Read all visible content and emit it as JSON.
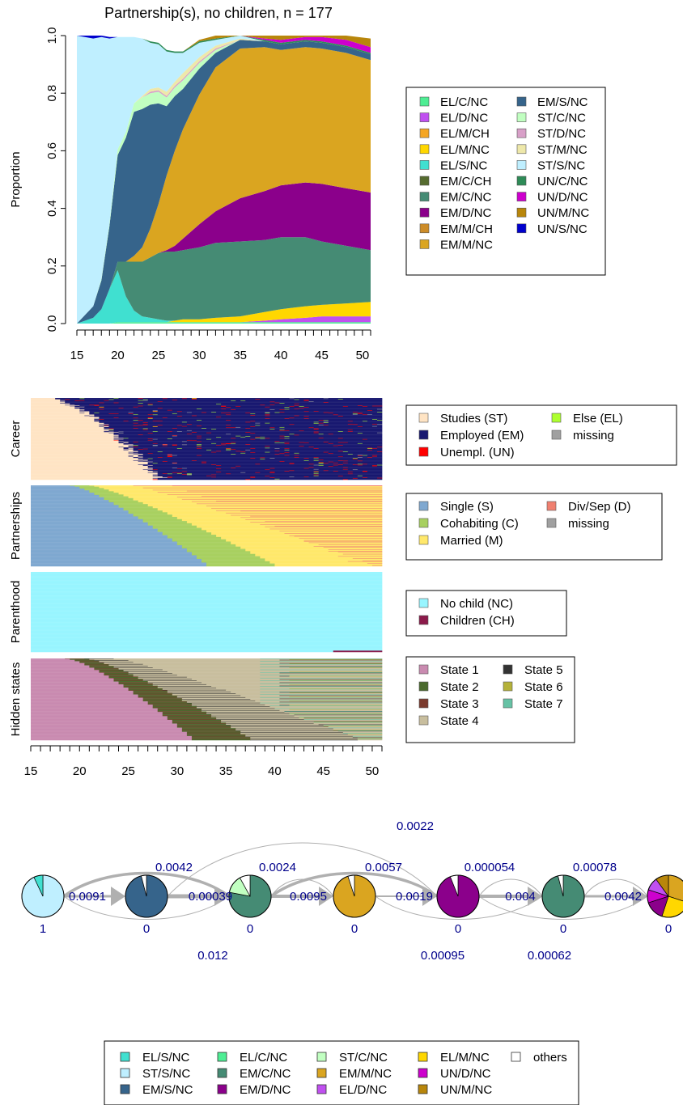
{
  "chart_data": [
    {
      "type": "area",
      "title": "Partnership(s), no children, n = 177",
      "xlabel": "",
      "ylabel": "Proportion",
      "xlim": [
        15,
        51
      ],
      "ylim": [
        0,
        1
      ],
      "x_ticks": [
        15,
        20,
        25,
        30,
        35,
        40,
        45,
        50
      ],
      "y_ticks": [
        "0.0",
        "0.2",
        "0.4",
        "0.6",
        "0.8",
        "1.0"
      ],
      "x": [
        15,
        17,
        18,
        19,
        20,
        21,
        22,
        23,
        24,
        25,
        26,
        27,
        28,
        30,
        32,
        35,
        38,
        40,
        43,
        45,
        48,
        51
      ],
      "series": [
        {
          "name": "EL/C/NC",
          "color": "#4EEE94",
          "values": [
            0,
            0,
            0,
            0,
            0.005,
            0.005,
            0.005,
            0.005,
            0.005,
            0.005,
            0.005,
            0.005,
            0.005,
            0.005,
            0.005,
            0.005,
            0.005,
            0.005,
            0.005,
            0.005,
            0.005,
            0.005
          ]
        },
        {
          "name": "EL/D/NC",
          "color": "#C050F0",
          "values": [
            0,
            0,
            0,
            0,
            0,
            0,
            0,
            0,
            0,
            0,
            0,
            0,
            0,
            0,
            0,
            0,
            0.005,
            0.01,
            0.015,
            0.02,
            0.02,
            0.02
          ]
        },
        {
          "name": "EL/M/CH",
          "color": "#F5A623",
          "values": [
            0,
            0,
            0,
            0,
            0,
            0,
            0,
            0,
            0,
            0,
            0,
            0,
            0,
            0,
            0,
            0,
            0,
            0,
            0,
            0,
            0,
            0
          ]
        },
        {
          "name": "EL/M/NC",
          "color": "#FFD700",
          "values": [
            0,
            0,
            0,
            0,
            0,
            0,
            0,
            0,
            0,
            0,
            0,
            0.005,
            0.01,
            0.01,
            0.015,
            0.02,
            0.03,
            0.035,
            0.04,
            0.04,
            0.045,
            0.05
          ]
        },
        {
          "name": "EL/S/NC",
          "color": "#40E0D0",
          "values": [
            0,
            0.02,
            0.05,
            0.12,
            0.18,
            0.09,
            0.04,
            0.02,
            0.015,
            0.01,
            0.005,
            0,
            0,
            0,
            0,
            0,
            0,
            0,
            0,
            0,
            0,
            0
          ]
        },
        {
          "name": "EM/C/CH",
          "color": "#556B2F",
          "values": [
            0,
            0,
            0,
            0,
            0,
            0,
            0,
            0,
            0,
            0,
            0,
            0,
            0,
            0,
            0,
            0,
            0,
            0,
            0,
            0,
            0,
            0
          ]
        },
        {
          "name": "EM/C/NC",
          "color": "#458B74",
          "values": [
            0,
            0,
            0,
            0,
            0.03,
            0.12,
            0.17,
            0.19,
            0.21,
            0.23,
            0.24,
            0.24,
            0.24,
            0.25,
            0.26,
            0.26,
            0.25,
            0.25,
            0.24,
            0.22,
            0.2,
            0.18
          ]
        },
        {
          "name": "EM/D/NC",
          "color": "#8B008B",
          "values": [
            0,
            0,
            0,
            0,
            0,
            0,
            0,
            0,
            0,
            0,
            0.005,
            0.02,
            0.04,
            0.08,
            0.11,
            0.15,
            0.17,
            0.18,
            0.19,
            0.2,
            0.2,
            0.2
          ]
        },
        {
          "name": "EM/M/CH",
          "color": "#CD8C28",
          "values": [
            0,
            0,
            0,
            0,
            0,
            0,
            0,
            0,
            0,
            0,
            0,
            0,
            0,
            0,
            0,
            0,
            0,
            0,
            0,
            0,
            0,
            0
          ]
        },
        {
          "name": "EM/M/NC",
          "color": "#DAA520",
          "values": [
            0,
            0,
            0,
            0,
            0,
            0,
            0.02,
            0.05,
            0.1,
            0.17,
            0.26,
            0.33,
            0.38,
            0.45,
            0.5,
            0.52,
            0.5,
            0.47,
            0.47,
            0.47,
            0.47,
            0.46
          ]
        },
        {
          "name": "EM/S/NC",
          "color": "#36648B",
          "values": [
            0,
            0.04,
            0.1,
            0.22,
            0.37,
            0.43,
            0.5,
            0.48,
            0.43,
            0.35,
            0.24,
            0.19,
            0.14,
            0.09,
            0.05,
            0.03,
            0.02,
            0.02,
            0.02,
            0.02,
            0.02,
            0.02
          ]
        },
        {
          "name": "ST/C/NC",
          "color": "#C1FFC1",
          "values": [
            0,
            0,
            0.005,
            0.01,
            0.02,
            0.02,
            0.03,
            0.04,
            0.04,
            0.04,
            0.03,
            0.03,
            0.03,
            0.02,
            0.01,
            0,
            0,
            0,
            0,
            0,
            0,
            0
          ]
        },
        {
          "name": "ST/D/NC",
          "color": "#D8A0C8",
          "values": [
            0,
            0,
            0,
            0,
            0,
            0,
            0,
            0,
            0.005,
            0.005,
            0.005,
            0.005,
            0.005,
            0.005,
            0.005,
            0,
            0,
            0,
            0,
            0,
            0,
            0
          ]
        },
        {
          "name": "ST/M/NC",
          "color": "#EEE8AA",
          "values": [
            0,
            0,
            0,
            0,
            0,
            0,
            0,
            0.005,
            0.01,
            0.01,
            0.015,
            0.015,
            0.02,
            0.015,
            0.01,
            0.005,
            0,
            0,
            0,
            0,
            0,
            0
          ]
        },
        {
          "name": "ST/S/NC",
          "color": "#BFEFFF",
          "values": [
            1,
            0.93,
            0.84,
            0.64,
            0.39,
            0.33,
            0.23,
            0.2,
            0.16,
            0.15,
            0.14,
            0.1,
            0.07,
            0.05,
            0.02,
            0.01,
            0,
            0,
            0,
            0,
            0,
            0
          ]
        },
        {
          "name": "UN/C/NC",
          "color": "#2E8B57",
          "values": [
            0,
            0,
            0,
            0,
            0,
            0,
            0,
            0,
            0.005,
            0.005,
            0.005,
            0.005,
            0.005,
            0.005,
            0.005,
            0.005,
            0.005,
            0.005,
            0.005,
            0.005,
            0.005,
            0.005
          ]
        },
        {
          "name": "UN/D/NC",
          "color": "#CD00CD",
          "values": [
            0,
            0,
            0,
            0,
            0,
            0,
            0,
            0,
            0,
            0,
            0,
            0,
            0,
            0,
            0,
            0,
            0.005,
            0.01,
            0.01,
            0.015,
            0.02,
            0.02
          ]
        },
        {
          "name": "UN/M/NC",
          "color": "#B8860B",
          "values": [
            0,
            0,
            0,
            0,
            0,
            0,
            0,
            0,
            0,
            0,
            0,
            0,
            0,
            0.005,
            0.01,
            0.02,
            0.03,
            0.03,
            0.03,
            0.03,
            0.03,
            0.03
          ]
        },
        {
          "name": "UN/S/NC",
          "color": "#0000CD",
          "values": [
            0,
            0.01,
            0.005,
            0.005,
            0,
            0,
            0,
            0,
            0,
            0,
            0,
            0,
            0,
            0,
            0,
            0,
            0,
            0,
            0,
            0,
            0,
            0
          ]
        }
      ]
    },
    {
      "type": "heatmap",
      "xlabel": "",
      "x_ticks": [
        15,
        20,
        25,
        30,
        35,
        40,
        45,
        50
      ],
      "xlim": [
        15,
        51
      ],
      "channels": [
        {
          "label": "Career",
          "legend": [
            {
              "name": "Studies (ST)",
              "color": "#FFE4C4"
            },
            {
              "name": "Employed (EM)",
              "color": "#191970"
            },
            {
              "name": "Unempl. (UN)",
              "color": "#FF0000"
            },
            {
              "name": "Else (EL)",
              "color": "#ADFF2F"
            },
            {
              "name": "missing",
              "color": "#A0A0A0"
            }
          ]
        },
        {
          "label": "Partnerships",
          "legend": [
            {
              "name": "Single (S)",
              "color": "#7FA8D0"
            },
            {
              "name": "Cohabiting (C)",
              "color": "#A8D060"
            },
            {
              "name": "Married (M)",
              "color": "#FFE86B"
            },
            {
              "name": "Div/Sep (D)",
              "color": "#F08070"
            },
            {
              "name": "missing",
              "color": "#A0A0A0"
            }
          ]
        },
        {
          "label": "Parenthood",
          "legend": [
            {
              "name": "No child (NC)",
              "color": "#98F5FF"
            },
            {
              "name": "Children (CH)",
              "color": "#8B1A4A"
            }
          ]
        },
        {
          "label": "Hidden states",
          "legend": [
            {
              "name": "State 1",
              "color": "#C98BB0"
            },
            {
              "name": "State 2",
              "color": "#4B6A2E"
            },
            {
              "name": "State 3",
              "color": "#7B3B2E"
            },
            {
              "name": "State 4",
              "color": "#C8BE9E"
            },
            {
              "name": "State 5",
              "color": "#333333"
            },
            {
              "name": "State 6",
              "color": "#B5B23A"
            },
            {
              "name": "State 7",
              "color": "#66C2A5"
            }
          ]
        }
      ]
    },
    {
      "type": "diagram",
      "nodes": [
        {
          "initial": "1",
          "slices": [
            {
              "state": "ST/S/NC",
              "value": 0.93
            },
            {
              "state": "EL/S/NC",
              "value": 0.07
            }
          ]
        },
        {
          "initial": "0",
          "slices": [
            {
              "state": "EM/S/NC",
              "value": 0.96
            },
            {
              "state": "others",
              "value": 0.04
            }
          ]
        },
        {
          "initial": "0",
          "slices": [
            {
              "state": "EM/C/NC",
              "value": 0.78
            },
            {
              "state": "ST/C/NC",
              "value": 0.14
            },
            {
              "state": "others",
              "value": 0.08
            }
          ]
        },
        {
          "initial": "0",
          "slices": [
            {
              "state": "EM/M/NC",
              "value": 0.95
            },
            {
              "state": "others",
              "value": 0.05
            }
          ]
        },
        {
          "initial": "0",
          "slices": [
            {
              "state": "EM/D/NC",
              "value": 0.94
            },
            {
              "state": "others",
              "value": 0.06
            }
          ]
        },
        {
          "initial": "0",
          "slices": [
            {
              "state": "EM/C/NC",
              "value": 0.96
            },
            {
              "state": "others",
              "value": 0.04
            }
          ]
        },
        {
          "initial": "0",
          "slices": [
            {
              "state": "EM/M/NC",
              "value": 0.3
            },
            {
              "state": "EL/M/NC",
              "value": 0.25
            },
            {
              "state": "EM/D/NC",
              "value": 0.15
            },
            {
              "state": "UN/D/NC",
              "value": 0.1
            },
            {
              "state": "EL/D/NC",
              "value": 0.1
            },
            {
              "state": "UN/M/NC",
              "value": 0.1
            }
          ]
        }
      ],
      "transitions": [
        {
          "from": 1,
          "to": 2,
          "label": "0.0091"
        },
        {
          "from": 1,
          "to": 3,
          "label": "0.0042"
        },
        {
          "from": 1,
          "to": 3,
          "label": "0.00039"
        },
        {
          "from": 2,
          "to": 3,
          "label": "0.012"
        },
        {
          "from": 2,
          "to": 5,
          "label": "0.0022"
        },
        {
          "from": 3,
          "to": 4,
          "label": "0.0095"
        },
        {
          "from": 3,
          "to": 4,
          "label": "0.0024"
        },
        {
          "from": 3,
          "to": 5,
          "label": "0.0057"
        },
        {
          "from": 4,
          "to": 5,
          "label": "0.0019"
        },
        {
          "from": 4,
          "to": 6,
          "label": "0.00095"
        },
        {
          "from": 5,
          "to": 6,
          "label": "0.004"
        },
        {
          "from": 5,
          "to": 6,
          "label": "0.000054"
        },
        {
          "from": 5,
          "to": 7,
          "label": "0.00062"
        },
        {
          "from": 6,
          "to": 7,
          "label": "0.0042"
        },
        {
          "from": 6,
          "to": 7,
          "label": "0.00078"
        }
      ],
      "legend": [
        {
          "name": "EL/S/NC",
          "color": "#40E0D0"
        },
        {
          "name": "ST/S/NC",
          "color": "#BFEFFF"
        },
        {
          "name": "EM/S/NC",
          "color": "#36648B"
        },
        {
          "name": "EL/C/NC",
          "color": "#4EEE94"
        },
        {
          "name": "EM/C/NC",
          "color": "#458B74"
        },
        {
          "name": "EM/D/NC",
          "color": "#8B008B"
        },
        {
          "name": "ST/C/NC",
          "color": "#C1FFC1"
        },
        {
          "name": "EM/M/NC",
          "color": "#DAA520"
        },
        {
          "name": "EL/D/NC",
          "color": "#C050F0"
        },
        {
          "name": "EL/M/NC",
          "color": "#FFD700"
        },
        {
          "name": "UN/D/NC",
          "color": "#CD00CD"
        },
        {
          "name": "UN/M/NC",
          "color": "#B8860B"
        },
        {
          "name": "others",
          "color": "#FFFFFF"
        }
      ]
    }
  ]
}
